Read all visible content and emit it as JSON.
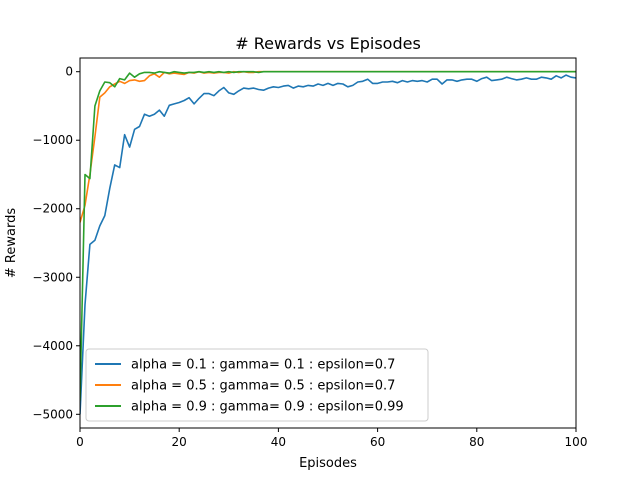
{
  "chart_data": {
    "type": "line",
    "title": "# Rewards vs Episodes",
    "xlabel": "Episodes",
    "ylabel": "# Rewards",
    "xlim": [
      0,
      100
    ],
    "ylim": [
      -5200,
      200
    ],
    "xticks": [
      0,
      20,
      40,
      60,
      80,
      100
    ],
    "xtick_labels": [
      "0",
      "20",
      "40",
      "60",
      "80",
      "100"
    ],
    "yticks": [
      -5000,
      -4000,
      -3000,
      -2000,
      -1000,
      0
    ],
    "ytick_labels": [
      "−5000",
      "−4000",
      "−3000",
      "−2000",
      "−1000",
      "0"
    ],
    "grid": false,
    "legend_position": "lower-left",
    "series": [
      {
        "name": "alpha = 0.1 : gamma= 0.1 : epsilon=0.7",
        "color": "#1f77b4",
        "x": [
          0,
          1,
          2,
          3,
          4,
          5,
          6,
          7,
          8,
          9,
          10,
          11,
          12,
          13,
          14,
          15,
          16,
          17,
          18,
          19,
          20,
          21,
          22,
          23,
          24,
          25,
          26,
          27,
          28,
          29,
          30,
          31,
          32,
          33,
          34,
          35,
          36,
          37,
          38,
          39,
          40,
          41,
          42,
          43,
          44,
          45,
          46,
          47,
          48,
          49,
          50,
          51,
          52,
          53,
          54,
          55,
          56,
          57,
          58,
          59,
          60,
          61,
          62,
          63,
          64,
          65,
          66,
          67,
          68,
          69,
          70,
          71,
          72,
          73,
          74,
          75,
          76,
          77,
          78,
          79,
          80,
          81,
          82,
          83,
          84,
          85,
          86,
          87,
          88,
          89,
          90,
          91,
          92,
          93,
          94,
          95,
          96,
          97,
          98,
          99,
          100
        ],
        "y": [
          -5000,
          -3400,
          -2520,
          -2460,
          -2250,
          -2100,
          -1700,
          -1360,
          -1400,
          -920,
          -1100,
          -840,
          -800,
          -620,
          -650,
          -620,
          -560,
          -650,
          -490,
          -470,
          -450,
          -420,
          -380,
          -470,
          -390,
          -320,
          -320,
          -350,
          -280,
          -230,
          -310,
          -330,
          -280,
          -240,
          -250,
          -240,
          -260,
          -270,
          -240,
          -220,
          -230,
          -210,
          -200,
          -240,
          -210,
          -220,
          -200,
          -210,
          -180,
          -200,
          -170,
          -200,
          -170,
          -180,
          -220,
          -200,
          -150,
          -140,
          -110,
          -170,
          -170,
          -150,
          -150,
          -140,
          -160,
          -130,
          -150,
          -130,
          -140,
          -130,
          -150,
          -110,
          -110,
          -180,
          -120,
          -120,
          -140,
          -120,
          -110,
          -110,
          -140,
          -100,
          -80,
          -130,
          -120,
          -110,
          -80,
          -100,
          -120,
          -110,
          -90,
          -110,
          -110,
          -80,
          -90,
          -110,
          -60,
          -90,
          -50,
          -80,
          -90
        ]
      },
      {
        "name": "alpha = 0.5 : gamma= 0.5 : epsilon=0.7",
        "color": "#ff7f0e",
        "x": [
          0,
          1,
          2,
          3,
          4,
          5,
          6,
          7,
          8,
          9,
          10,
          11,
          12,
          13,
          14,
          15,
          16,
          17,
          18,
          19,
          20,
          21,
          22,
          23,
          24,
          25,
          26,
          27,
          28,
          29,
          30,
          31,
          32,
          33,
          34,
          35,
          36,
          37,
          38,
          39,
          40,
          45,
          50,
          55,
          60,
          65,
          70,
          75,
          80,
          85,
          90,
          95,
          100
        ],
        "y": [
          -2200,
          -1950,
          -1500,
          -950,
          -370,
          -310,
          -220,
          -180,
          -140,
          -170,
          -130,
          -120,
          -140,
          -130,
          -60,
          -30,
          -80,
          -10,
          -30,
          -20,
          -30,
          -40,
          -10,
          -20,
          0,
          -20,
          -10,
          -20,
          -10,
          -10,
          -20,
          0,
          -10,
          0,
          -10,
          -10,
          0,
          0,
          0,
          0,
          0,
          0,
          0,
          0,
          0,
          0,
          0,
          0,
          0,
          0,
          0,
          0,
          0
        ]
      },
      {
        "name": "alpha = 0.9 : gamma= 0.9 : epsilon=0.99",
        "color": "#2ca02c",
        "x": [
          0,
          1,
          2,
          3,
          4,
          5,
          6,
          7,
          8,
          9,
          10,
          11,
          12,
          13,
          14,
          15,
          16,
          17,
          18,
          19,
          20,
          21,
          22,
          23,
          24,
          25,
          26,
          27,
          28,
          29,
          30,
          31,
          32,
          33,
          34,
          35,
          36,
          37,
          38,
          39,
          40,
          45,
          50,
          55,
          60,
          65,
          70,
          75,
          80,
          85,
          90,
          95,
          100
        ],
        "y": [
          -4800,
          -1500,
          -1560,
          -500,
          -280,
          -150,
          -160,
          -220,
          -100,
          -120,
          -20,
          -80,
          -30,
          -10,
          -10,
          -20,
          0,
          -10,
          -20,
          0,
          -10,
          -20,
          -10,
          -10,
          0,
          -10,
          0,
          -10,
          0,
          -10,
          0,
          -10,
          0,
          0,
          0,
          0,
          -10,
          0,
          0,
          0,
          0,
          0,
          0,
          0,
          0,
          0,
          0,
          0,
          0,
          0,
          0,
          0,
          0
        ]
      }
    ]
  }
}
